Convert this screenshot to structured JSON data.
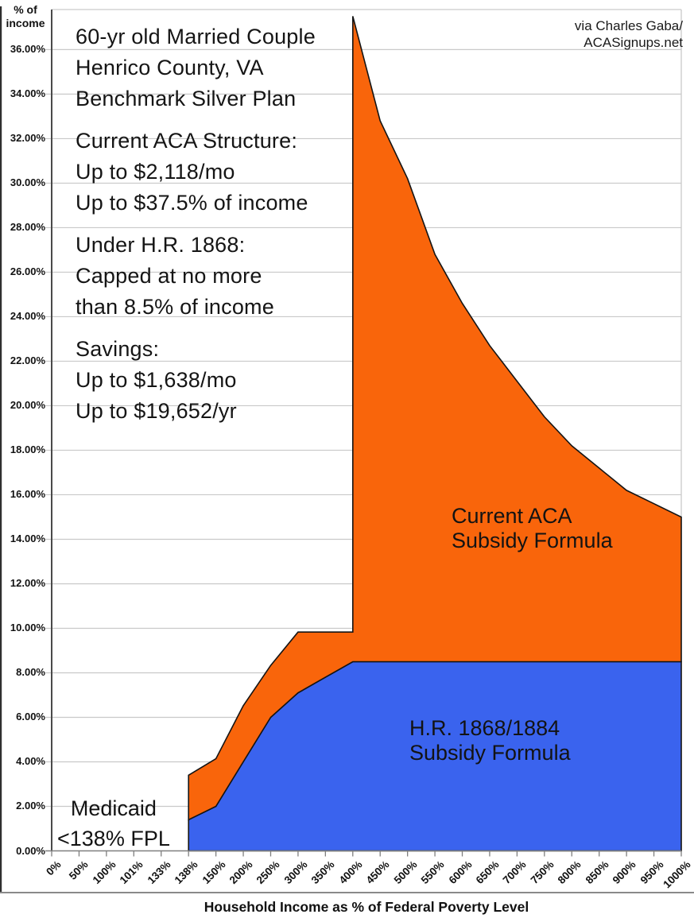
{
  "credit": {
    "line1": "via Charles Gaba/",
    "line2": "ACASignups.net"
  },
  "y_axis": {
    "title_line1": "% of",
    "title_line2": "income",
    "tick_labels": [
      "0.00%",
      "2.00%",
      "4.00%",
      "6.00%",
      "8.00%",
      "10.00%",
      "12.00%",
      "14.00%",
      "16.00%",
      "18.00%",
      "20.00%",
      "22.00%",
      "24.00%",
      "26.00%",
      "28.00%",
      "30.00%",
      "32.00%",
      "34.00%",
      "36.00%"
    ]
  },
  "x_axis": {
    "title": "Household Income as % of Federal Poverty Level",
    "tick_labels": [
      "0%",
      "50%",
      "100%",
      "101%",
      "133%",
      "138%",
      "150%",
      "200%",
      "250%",
      "300%",
      "350%",
      "400%",
      "450%",
      "500%",
      "550%",
      "600%",
      "650%",
      "700%",
      "750%",
      "800%",
      "850%",
      "900%",
      "950%",
      "1000%"
    ]
  },
  "info": {
    "p1": [
      "60-yr old Married Couple",
      "Henrico County, VA",
      "Benchmark Silver Plan"
    ],
    "p2": [
      "Current ACA Structure:",
      "Up to $2,118/mo",
      "Up to $37.5% of income"
    ],
    "p3": [
      "Under H.R. 1868:",
      "Capped at no more",
      "than 8.5% of income"
    ],
    "p4": [
      "Savings:",
      "Up to $1,638/mo",
      "Up to $19,652/yr"
    ]
  },
  "labels": {
    "orange_area_line1": "Current ACA",
    "orange_area_line2": "Subsidy Formula",
    "blue_area_line1": "H.R. 1868/1884",
    "blue_area_line2": "Subsidy Formula",
    "medicaid_line1": "Medicaid",
    "medicaid_line2": "<138% FPL"
  },
  "colors": {
    "orange": "#F9650B",
    "blue": "#3A63EE",
    "outline": "#141414",
    "gridline": "#c9c9c9",
    "axis": "#7f7f7f",
    "yaxis_line": "#4a4a4a"
  },
  "chart_data": {
    "type": "area",
    "title": "60-yr old Married Couple, Henrico County, VA, Benchmark Silver Plan",
    "xlabel": "Household Income as % of Federal Poverty Level",
    "ylabel": "% of income",
    "ylim": [
      0,
      37.8
    ],
    "y_gridline_step_pct": 2,
    "legend_position": "in-plot text labels",
    "categories": [
      "0%",
      "50%",
      "100%",
      "101%",
      "133%",
      "138%",
      "150%",
      "200%",
      "250%",
      "300%",
      "350%",
      "400%",
      "450%",
      "500%",
      "550%",
      "600%",
      "650%",
      "700%",
      "750%",
      "800%",
      "850%",
      "900%",
      "950%",
      "1000%"
    ],
    "series": [
      {
        "name": "Current ACA Subsidy Formula",
        "color": "#F9650B",
        "note": "premium cost as % of income; subsidy cliff spike at 400% FPL up to 37.5%, declining to 15% at 1000% FPL",
        "points": [
          [
            "138%",
            3.4
          ],
          [
            "150%",
            4.14
          ],
          [
            "200%",
            6.52
          ],
          [
            "250%",
            8.33
          ],
          [
            "300%",
            9.83
          ],
          [
            "350%",
            9.83
          ],
          [
            "400%",
            9.83
          ],
          [
            "400%",
            37.5
          ],
          [
            "450%",
            32.8
          ],
          [
            "500%",
            30.2
          ],
          [
            "550%",
            26.8
          ],
          [
            "600%",
            24.6
          ],
          [
            "650%",
            22.7
          ],
          [
            "700%",
            21.1
          ],
          [
            "750%",
            19.5
          ],
          [
            "800%",
            18.2
          ],
          [
            "850%",
            17.2
          ],
          [
            "900%",
            16.2
          ],
          [
            "950%",
            15.6
          ],
          [
            "1000%",
            15.0
          ]
        ]
      },
      {
        "name": "H.R. 1868/1884 Subsidy Formula",
        "color": "#3A63EE",
        "note": "capped at no more than 8.5% of income from 400% FPL upward",
        "points": [
          [
            "138%",
            1.4
          ],
          [
            "150%",
            2.0
          ],
          [
            "200%",
            4.0
          ],
          [
            "250%",
            6.0
          ],
          [
            "300%",
            7.1
          ],
          [
            "350%",
            7.8
          ],
          [
            "400%",
            8.5
          ],
          [
            "1000%",
            8.5
          ]
        ]
      }
    ],
    "annotations": [
      "Medicaid <138% FPL"
    ]
  }
}
